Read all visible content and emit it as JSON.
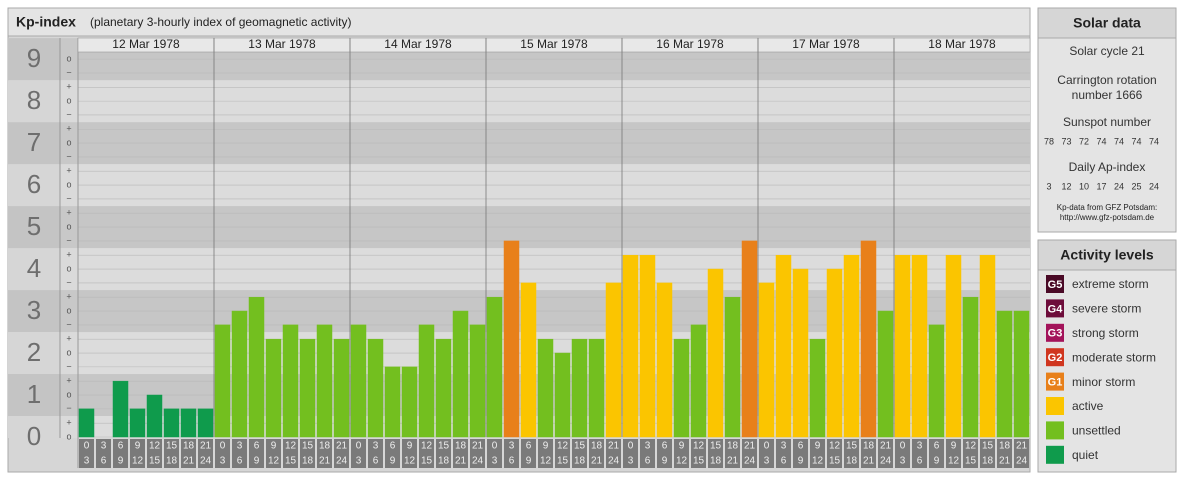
{
  "chart_data": {
    "type": "bar",
    "title": "Kp-index",
    "subtitle": "(planetary 3-hourly index of geomagnetic activity)",
    "ylim": [
      0,
      9.17
    ],
    "yticks": [
      0,
      1,
      2,
      3,
      4,
      5,
      6,
      7,
      8,
      9
    ],
    "minor_yticks": [
      {
        "value": 0,
        "label": "o"
      },
      {
        "value": 0.33,
        "label": "+"
      },
      {
        "value": 0.67,
        "label": "−"
      },
      {
        "value": 1,
        "label": "o"
      },
      {
        "value": 1.33,
        "label": "+"
      },
      {
        "value": 1.67,
        "label": "−"
      },
      {
        "value": 2,
        "label": "o"
      },
      {
        "value": 2.33,
        "label": "+"
      },
      {
        "value": 2.67,
        "label": "−"
      },
      {
        "value": 3,
        "label": "o"
      },
      {
        "value": 3.33,
        "label": "+"
      },
      {
        "value": 3.67,
        "label": "−"
      },
      {
        "value": 4,
        "label": "o"
      },
      {
        "value": 4.33,
        "label": "+"
      },
      {
        "value": 4.67,
        "label": "−"
      },
      {
        "value": 5,
        "label": "o"
      },
      {
        "value": 5.33,
        "label": "+"
      },
      {
        "value": 5.67,
        "label": "−"
      },
      {
        "value": 6,
        "label": "o"
      },
      {
        "value": 6.33,
        "label": "+"
      },
      {
        "value": 6.67,
        "label": "−"
      },
      {
        "value": 7,
        "label": "o"
      },
      {
        "value": 7.33,
        "label": "+"
      },
      {
        "value": 7.67,
        "label": "−"
      },
      {
        "value": 8,
        "label": "o"
      },
      {
        "value": 8.33,
        "label": "+"
      },
      {
        "value": 8.67,
        "label": "−"
      },
      {
        "value": 9,
        "label": "o"
      }
    ],
    "interval_labels": [
      [
        "0",
        "3"
      ],
      [
        "3",
        "6"
      ],
      [
        "6",
        "9"
      ],
      [
        "9",
        "12"
      ],
      [
        "12",
        "15"
      ],
      [
        "15",
        "18"
      ],
      [
        "18",
        "21"
      ],
      [
        "21",
        "24"
      ]
    ],
    "days": [
      {
        "date": "12 Mar 1978",
        "values": [
          0.67,
          0,
          1.33,
          0.67,
          1,
          0.67,
          0.67,
          0.67
        ],
        "colors": [
          "#0f9b4c",
          "#0f9b4c",
          "#0f9b4c",
          "#0f9b4c",
          "#0f9b4c",
          "#0f9b4c",
          "#0f9b4c",
          "#0f9b4c"
        ]
      },
      {
        "date": "13 Mar 1978",
        "values": [
          2.67,
          3,
          3.33,
          2.33,
          2.67,
          2.33,
          2.67,
          2.33
        ],
        "colors": [
          "#73bf1f",
          "#73bf1f",
          "#73bf1f",
          "#73bf1f",
          "#73bf1f",
          "#73bf1f",
          "#73bf1f",
          "#73bf1f"
        ]
      },
      {
        "date": "14 Mar 1978",
        "values": [
          2.67,
          2.33,
          1.67,
          1.67,
          2.67,
          2.33,
          3,
          2.67
        ],
        "colors": [
          "#73bf1f",
          "#73bf1f",
          "#73bf1f",
          "#73bf1f",
          "#73bf1f",
          "#73bf1f",
          "#73bf1f",
          "#73bf1f"
        ]
      },
      {
        "date": "15 Mar 1978",
        "values": [
          3.33,
          4.67,
          3.67,
          2.33,
          2,
          2.33,
          2.33,
          3.67
        ],
        "colors": [
          "#73bf1f",
          "#e8801a",
          "#fbc500",
          "#73bf1f",
          "#73bf1f",
          "#73bf1f",
          "#73bf1f",
          "#fbc500"
        ]
      },
      {
        "date": "16 Mar 1978",
        "values": [
          4.33,
          4.33,
          3.67,
          2.33,
          2.67,
          4,
          3.33,
          4.67
        ],
        "colors": [
          "#fbc500",
          "#fbc500",
          "#fbc500",
          "#73bf1f",
          "#73bf1f",
          "#fbc500",
          "#73bf1f",
          "#e8801a"
        ]
      },
      {
        "date": "17 Mar 1978",
        "values": [
          3.67,
          4.33,
          4,
          2.33,
          4,
          4.33,
          4.67,
          3
        ],
        "colors": [
          "#fbc500",
          "#fbc500",
          "#fbc500",
          "#73bf1f",
          "#fbc500",
          "#fbc500",
          "#e8801a",
          "#73bf1f"
        ]
      },
      {
        "date": "18 Mar 1978",
        "values": [
          4.33,
          4.33,
          2.67,
          4.33,
          3.33,
          4.33,
          3,
          3
        ],
        "colors": [
          "#fbc500",
          "#fbc500",
          "#73bf1f",
          "#fbc500",
          "#73bf1f",
          "#fbc500",
          "#73bf1f",
          "#73bf1f"
        ]
      }
    ]
  },
  "solar_data": {
    "title": "Solar data",
    "cycle": "Solar cycle 21",
    "rotation": [
      "Carrington rotation",
      "number 1666"
    ],
    "sunspot_title": "Sunspot number",
    "sunspot": [
      78,
      73,
      72,
      74,
      74,
      74,
      74
    ],
    "ap_title": "Daily Ap-index",
    "ap": [
      3,
      12,
      10,
      17,
      24,
      25,
      24
    ],
    "source": [
      "Kp-data from GFZ Potsdam:",
      "http://www.gfz-potsdam.de"
    ]
  },
  "activity_levels": {
    "title": "Activity levels",
    "items": [
      {
        "badge": "G5",
        "name": "extreme storm",
        "color": "#4a0a26"
      },
      {
        "badge": "G4",
        "name": "severe storm",
        "color": "#6d0c3a"
      },
      {
        "badge": "G3",
        "name": "strong storm",
        "color": "#a3135a"
      },
      {
        "badge": "G2",
        "name": "moderate storm",
        "color": "#d0361f"
      },
      {
        "badge": "G1",
        "name": "minor storm",
        "color": "#e8801a"
      },
      {
        "name": "active",
        "color": "#fbc500"
      },
      {
        "name": "unsettled",
        "color": "#73bf1f"
      },
      {
        "name": "quiet",
        "color": "#0f9b4c"
      }
    ]
  }
}
